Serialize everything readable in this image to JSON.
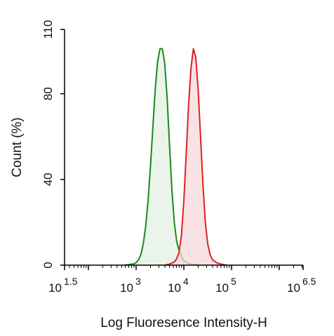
{
  "chart_data": {
    "type": "area",
    "title": "",
    "xlabel": "Log Fluoresence Intensity-H",
    "ylabel": "Count  (%)",
    "xscale": "log",
    "xlim": [
      1.5,
      6.5
    ],
    "ylim": [
      0,
      110
    ],
    "xticks": [
      {
        "base": "10",
        "exp": "1.5",
        "value": 1.5
      },
      {
        "base": "10",
        "exp": "3",
        "value": 3
      },
      {
        "base": "10",
        "exp": "4",
        "value": 4
      },
      {
        "base": "10",
        "exp": "5",
        "value": 5
      },
      {
        "base": "10",
        "exp": "6.5",
        "value": 6.5
      }
    ],
    "yticks": [
      {
        "label": "0",
        "value": 0
      },
      {
        "label": "40",
        "value": 40
      },
      {
        "label": "80",
        "value": 80
      },
      {
        "label": "110",
        "value": 110
      }
    ],
    "grid": false,
    "legend": "none",
    "series": [
      {
        "color": "#1a8a1a",
        "fill": "#e4f0e4",
        "points": [
          [
            2.75,
            0
          ],
          [
            2.85,
            0.3
          ],
          [
            2.95,
            0.6
          ],
          [
            3.0,
            1.2
          ],
          [
            3.05,
            2.5
          ],
          [
            3.1,
            5
          ],
          [
            3.15,
            10
          ],
          [
            3.2,
            18
          ],
          [
            3.25,
            30
          ],
          [
            3.3,
            46
          ],
          [
            3.35,
            64
          ],
          [
            3.4,
            82
          ],
          [
            3.45,
            95
          ],
          [
            3.5,
            101
          ],
          [
            3.55,
            101
          ],
          [
            3.6,
            94
          ],
          [
            3.65,
            78
          ],
          [
            3.7,
            56
          ],
          [
            3.75,
            35
          ],
          [
            3.8,
            20
          ],
          [
            3.85,
            11
          ],
          [
            3.9,
            7
          ],
          [
            3.95,
            4
          ],
          [
            4.0,
            2
          ],
          [
            4.1,
            0.8
          ],
          [
            4.2,
            0.3
          ],
          [
            4.3,
            0
          ]
        ]
      },
      {
        "color": "#dd2222",
        "fill": "#f6d8dc",
        "points": [
          [
            3.6,
            0
          ],
          [
            3.7,
            0.5
          ],
          [
            3.8,
            1.5
          ],
          [
            3.85,
            3
          ],
          [
            3.9,
            6
          ],
          [
            3.95,
            14
          ],
          [
            4.0,
            30
          ],
          [
            4.05,
            52
          ],
          [
            4.1,
            75
          ],
          [
            4.15,
            92
          ],
          [
            4.2,
            101
          ],
          [
            4.25,
            97
          ],
          [
            4.3,
            82
          ],
          [
            4.35,
            60
          ],
          [
            4.4,
            38
          ],
          [
            4.45,
            20
          ],
          [
            4.5,
            10
          ],
          [
            4.55,
            5
          ],
          [
            4.6,
            2.5
          ],
          [
            4.7,
            1
          ],
          [
            4.8,
            0.4
          ],
          [
            4.9,
            0
          ]
        ]
      }
    ]
  }
}
